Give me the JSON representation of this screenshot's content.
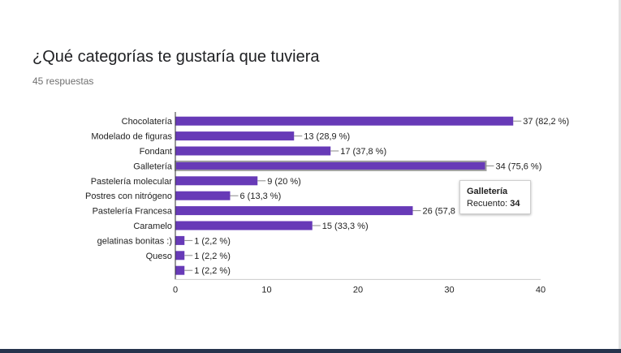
{
  "form": {
    "question": "¿Qué categorías te gustaría que tuviera",
    "responses": "45 respuestas"
  },
  "colors": {
    "bar": "#673ab7",
    "highlight_border": "#9e9e9e",
    "axis": "#333333",
    "grid": "#cccccc"
  },
  "tooltip": {
    "category": "Galletería",
    "count_label": "Recuento:",
    "count_value": "34"
  },
  "chart_data": {
    "type": "bar",
    "orientation": "horizontal",
    "categories": [
      "Chocolatería",
      "Modelado de figuras",
      "Fondant",
      "Galletería",
      "Pastelería molecular",
      "Postres con nitrógeno",
      "Pastelería Francesa",
      "Caramelo",
      "gelatinas bonitas :)",
      "Queso",
      ""
    ],
    "values": [
      37,
      13,
      17,
      34,
      9,
      6,
      26,
      15,
      1,
      1,
      1
    ],
    "data_labels": [
      "37 (82,2 %)",
      "13 (28,9 %)",
      "17 (37,8 %)",
      "34 (75,6 %)",
      "9 (20 %)",
      "6 (13,3 %)",
      "26 (57,8",
      "15 (33,3 %)",
      "1 (2,2 %)",
      "1 (2,2 %)",
      "1 (2,2 %)"
    ],
    "highlighted": "Galletería",
    "xlim": [
      0,
      40
    ],
    "xticks": [
      0,
      10,
      20,
      30,
      40
    ],
    "grid": false,
    "legend": "none"
  }
}
